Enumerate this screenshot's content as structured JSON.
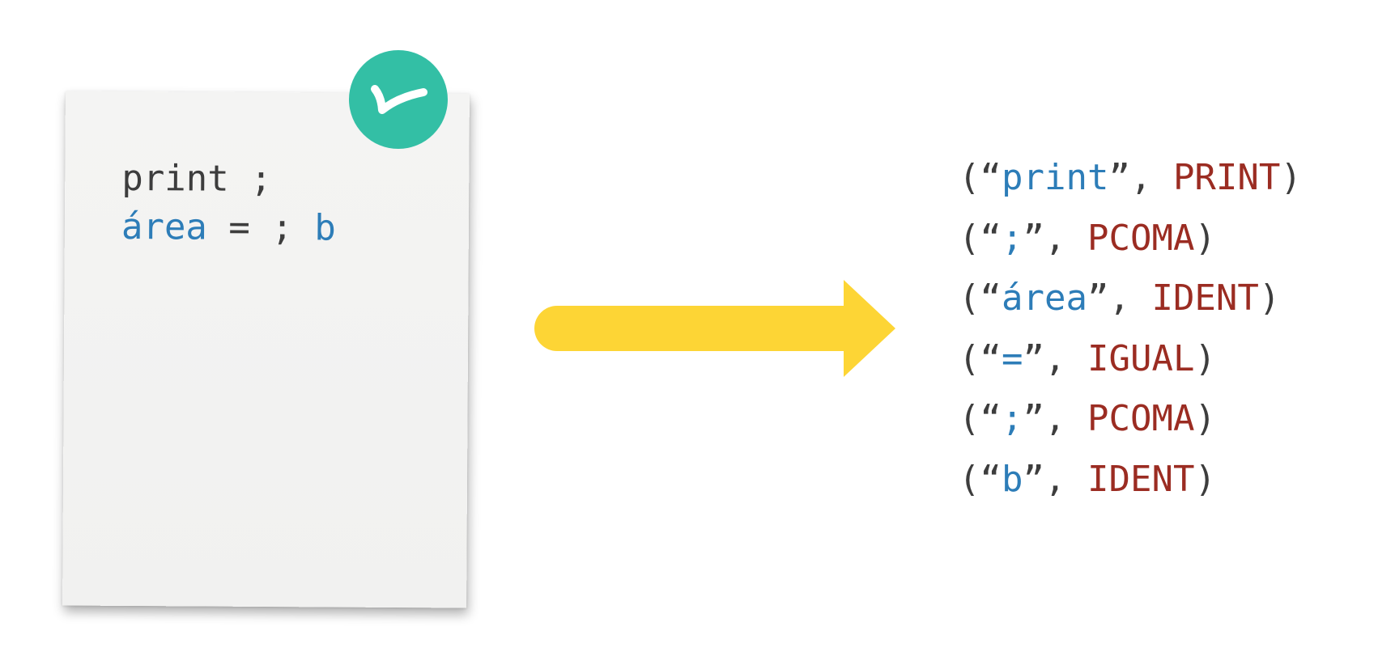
{
  "source": {
    "lines": [
      [
        {
          "text": "print ;",
          "color": "#3d3d3d"
        }
      ],
      [
        {
          "text": "área",
          "color": "#2d7db8"
        },
        {
          "text": " = ; ",
          "color": "#3d3d3d"
        },
        {
          "text": "b",
          "color": "#2d7db8"
        }
      ]
    ]
  },
  "badge": {
    "icon": "check-icon",
    "color": "#33bfa5"
  },
  "arrow": {
    "icon": "right-arrow-icon",
    "color": "#fdd535"
  },
  "tokens": [
    {
      "lexeme": "print",
      "type": "PRINT"
    },
    {
      "lexeme": ";",
      "type": "PCOMA"
    },
    {
      "lexeme": "área",
      "type": "IDENT"
    },
    {
      "lexeme": "=",
      "type": "IGUAL"
    },
    {
      "lexeme": ";",
      "type": "PCOMA"
    },
    {
      "lexeme": "b",
      "type": "IDENT"
    }
  ],
  "symbols": {
    "open_paren": "(",
    "open_quote": "“",
    "close_quote": "”",
    "comma": ", ",
    "close_paren": ")"
  },
  "colors": {
    "plain": "#3d3d3d",
    "lexeme": "#2d7db8",
    "type": "#9b2c22"
  }
}
